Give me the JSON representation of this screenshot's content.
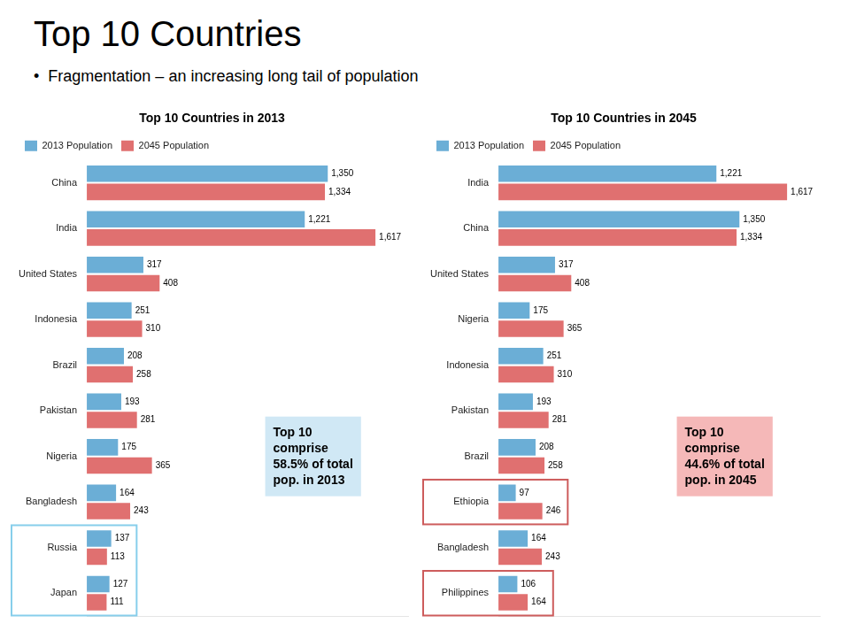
{
  "title": "Top 10 Countries",
  "subtitle": "•  Fragmentation – an increasing long tail of population",
  "chart_data": [
    {
      "type": "bar",
      "orientation": "horizontal",
      "title": "Top 10 Countries in 2013",
      "categories": [
        "China",
        "India",
        "United States",
        "Indonesia",
        "Brazil",
        "Pakistan",
        "Nigeria",
        "Bangladesh",
        "Russia",
        "Japan"
      ],
      "series": [
        {
          "name": "2013 Population",
          "color": "#6BAED6",
          "values": [
            1350,
            1221,
            317,
            251,
            208,
            193,
            175,
            164,
            137,
            127
          ],
          "value_labels": [
            "1,350",
            "1,221",
            "317",
            "251",
            "208",
            "193",
            "175",
            "164",
            "137",
            "127"
          ]
        },
        {
          "name": "2045 Population",
          "color": "#E07070",
          "values": [
            1334,
            1617,
            408,
            310,
            258,
            281,
            365,
            243,
            113,
            111
          ],
          "value_labels": [
            "1,334",
            "1,617",
            "408",
            "310",
            "258",
            "281",
            "365",
            "243",
            "113",
            "111"
          ]
        }
      ],
      "xlim": [
        0,
        1800
      ],
      "grid": false,
      "legend": "top",
      "data_labels": true,
      "tick_labels": "y",
      "stacked": false,
      "annotations": [
        {
          "text": "Top 10\ncomprise\n58.5% of total\npop. in 2013",
          "color": "#D0E8F5"
        },
        {
          "categories": [
            "Russia",
            "Japan"
          ],
          "color": "#87CEEB"
        }
      ]
    },
    {
      "type": "bar",
      "orientation": "horizontal",
      "title": "Top 10 Countries in 2045",
      "categories": [
        "India",
        "China",
        "United States",
        "Nigeria",
        "Indonesia",
        "Pakistan",
        "Brazil",
        "Ethiopia",
        "Bangladesh",
        "Philippines"
      ],
      "series": [
        {
          "name": "2013 Population",
          "color": "#6BAED6",
          "values": [
            1221,
            1350,
            317,
            175,
            251,
            193,
            208,
            97,
            164,
            106
          ],
          "value_labels": [
            "1,221",
            "1,350",
            "317",
            "175",
            "251",
            "193",
            "208",
            "97",
            "164",
            "106"
          ]
        },
        {
          "name": "2045 Population",
          "color": "#E07070",
          "values": [
            1617,
            1334,
            408,
            365,
            310,
            281,
            258,
            246,
            243,
            164
          ],
          "value_labels": [
            "1,617",
            "1,334",
            "408",
            "365",
            "310",
            "281",
            "258",
            "246",
            "243",
            "164"
          ]
        }
      ],
      "xlim": [
        0,
        1800
      ],
      "grid": false,
      "legend": "top",
      "data_labels": true,
      "tick_labels": "y",
      "stacked": false,
      "annotations": [
        {
          "text": "Top 10\ncomprise\n44.6% of total\npop. in 2045",
          "color": "#F5B8B8"
        },
        {
          "categories": [
            "Ethiopia"
          ],
          "color": "#CD5C5C"
        },
        {
          "categories": [
            "Philippines"
          ],
          "color": "#CD5C5C"
        }
      ]
    }
  ]
}
